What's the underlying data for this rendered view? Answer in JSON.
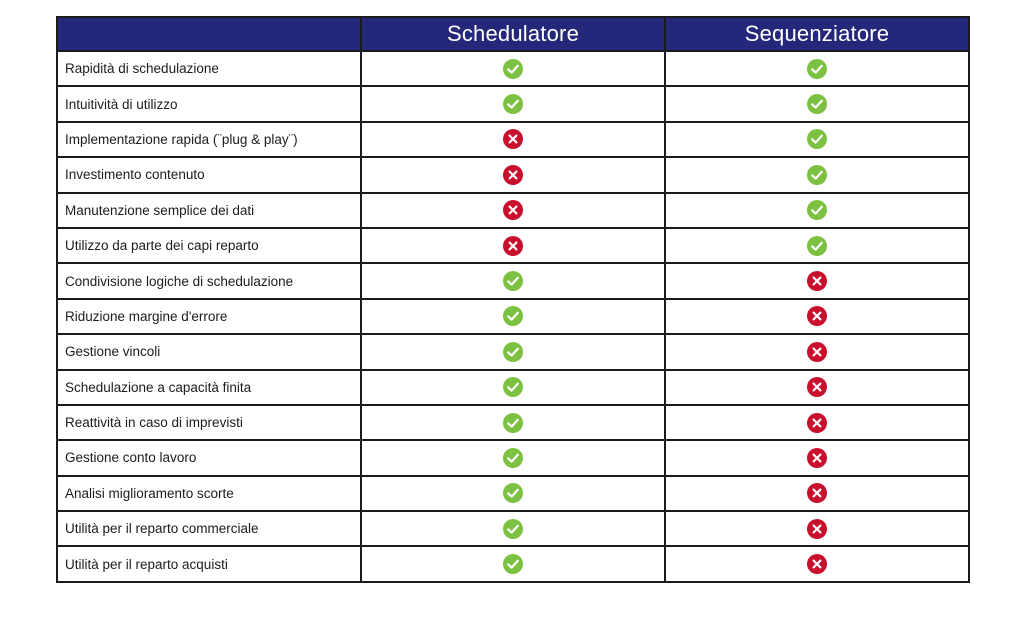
{
  "header": {
    "col1": "",
    "col2": "Schedulatore",
    "col3": "Sequenziatore"
  },
  "colors": {
    "header_bg": "#25287a",
    "check": "#7cc142",
    "cross": "#c8102e",
    "border": "#1b1b1b"
  },
  "rows": [
    {
      "label": "Rapidità di schedulazione",
      "schedulatore": "check-icon",
      "sequenziatore": "check-icon"
    },
    {
      "label": "Intuitività di utilizzo",
      "schedulatore": "check-icon",
      "sequenziatore": "check-icon"
    },
    {
      "label": "Implementazione rapida (¨plug & play¨)",
      "schedulatore": "cross-icon",
      "sequenziatore": "check-icon"
    },
    {
      "label": "Investimento contenuto",
      "schedulatore": "cross-icon",
      "sequenziatore": "check-icon"
    },
    {
      "label": "Manutenzione semplice dei dati",
      "schedulatore": "cross-icon",
      "sequenziatore": "check-icon"
    },
    {
      "label": "Utilizzo da parte dei capi reparto",
      "schedulatore": "cross-icon",
      "sequenziatore": "check-icon"
    },
    {
      "label": "Condivisione logiche di schedulazione",
      "schedulatore": "check-icon",
      "sequenziatore": "cross-icon"
    },
    {
      "label": "Riduzione margine d'errore",
      "schedulatore": "check-icon",
      "sequenziatore": "cross-icon"
    },
    {
      "label": "Gestione vincoli",
      "schedulatore": "check-icon",
      "sequenziatore": "cross-icon"
    },
    {
      "label": "Schedulazione a capacità finita",
      "schedulatore": "check-icon",
      "sequenziatore": "cross-icon"
    },
    {
      "label": "Reattività in caso di imprevisti",
      "schedulatore": "check-icon",
      "sequenziatore": "cross-icon"
    },
    {
      "label": "Gestione conto lavoro",
      "schedulatore": "check-icon",
      "sequenziatore": "cross-icon"
    },
    {
      "label": "Analisi miglioramento scorte",
      "schedulatore": "check-icon",
      "sequenziatore": "cross-icon"
    },
    {
      "label": "Utilità per il reparto commerciale",
      "schedulatore": "check-icon",
      "sequenziatore": "cross-icon"
    },
    {
      "label": "Utilità per il reparto acquisti",
      "schedulatore": "check-icon",
      "sequenziatore": "cross-icon"
    }
  ]
}
